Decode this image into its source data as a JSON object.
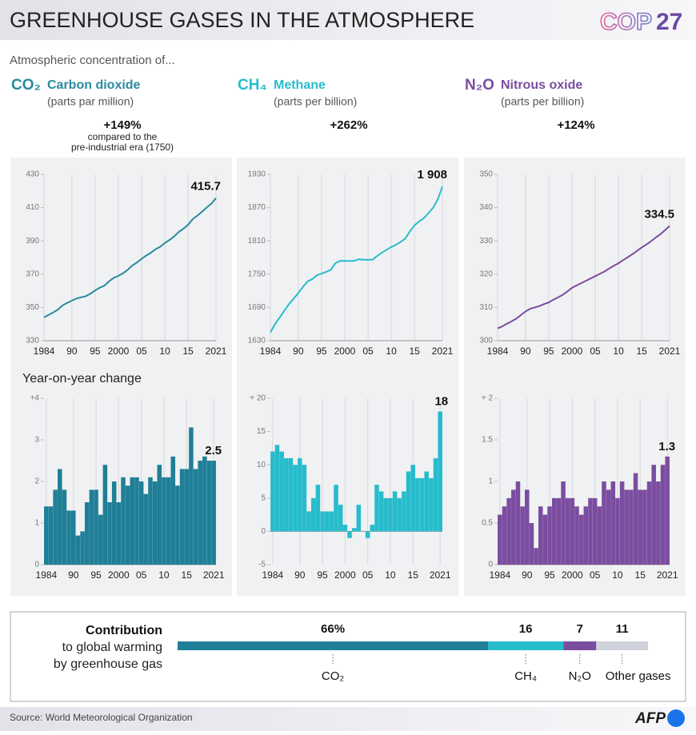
{
  "header": {
    "title": "GREENHOUSE GASES IN THE ATMOSPHERE",
    "logo_text": "COP",
    "logo_number": "27"
  },
  "intro": "Atmospheric concentration of...",
  "gases": [
    {
      "formula": "CO₂",
      "name": "Carbon dioxide",
      "unit": "(parts par million)",
      "change": "+149%",
      "note": [
        "compared to the",
        "pre-industrial era (1750)"
      ]
    },
    {
      "formula": "CH₄",
      "name": "Methane",
      "unit": "(parts per billion)",
      "change": "+262%"
    },
    {
      "formula": "N₂O",
      "name": "Nitrous oxide",
      "unit": "(parts per billion)",
      "change": "+124%"
    }
  ],
  "subheading": "Year-on-year change",
  "chart_data": [
    {
      "type": "line",
      "color": "#2a8aa0",
      "x": [
        1984,
        1985,
        1986,
        1987,
        1988,
        1989,
        1990,
        1991,
        1992,
        1993,
        1994,
        1995,
        1996,
        1997,
        1998,
        1999,
        2000,
        2001,
        2002,
        2003,
        2004,
        2005,
        2006,
        2007,
        2008,
        2009,
        2010,
        2011,
        2012,
        2013,
        2014,
        2015,
        2016,
        2017,
        2018,
        2019,
        2020,
        2021
      ],
      "values": [
        344.1,
        345.5,
        347.0,
        348.7,
        351.2,
        352.8,
        354.1,
        355.4,
        356.1,
        356.8,
        358.3,
        360.2,
        361.9,
        363.1,
        365.7,
        367.8,
        369.0,
        370.6,
        372.6,
        375.2,
        377.0,
        379.2,
        381.2,
        382.9,
        385.0,
        386.5,
        388.8,
        390.6,
        392.7,
        395.4,
        397.3,
        399.7,
        403.1,
        405.2,
        407.6,
        410.1,
        412.4,
        415.7
      ],
      "xlim": [
        1984,
        2021
      ],
      "xticks": [
        1984,
        {
          "value": 1990,
          "label": "90"
        },
        {
          "value": 1995,
          "label": "95"
        },
        2000,
        {
          "value": 2005,
          "label": "05"
        },
        {
          "value": 2010,
          "label": "10"
        },
        {
          "value": 2015,
          "label": "15"
        },
        2021
      ],
      "ylim": [
        330,
        430
      ],
      "yticks": [
        330,
        350,
        370,
        390,
        410,
        430
      ]
    },
    {
      "type": "line",
      "color": "#27bccc",
      "x": [
        1984,
        1985,
        1986,
        1987,
        1988,
        1989,
        1990,
        1991,
        1992,
        1993,
        1994,
        1995,
        1996,
        1997,
        1998,
        1999,
        2000,
        2001,
        2002,
        2003,
        2004,
        2005,
        2006,
        2007,
        2008,
        2009,
        2010,
        2011,
        2012,
        2013,
        2014,
        2015,
        2016,
        2017,
        2018,
        2019,
        2020,
        2021
      ],
      "values": [
        1645,
        1660,
        1672,
        1684,
        1696,
        1706,
        1716,
        1727,
        1737,
        1741,
        1748,
        1751,
        1754,
        1758,
        1770,
        1774,
        1774,
        1774,
        1774,
        1777,
        1776,
        1776,
        1776,
        1783,
        1789,
        1794,
        1799,
        1803,
        1808,
        1814,
        1827,
        1838,
        1845,
        1851,
        1860,
        1870,
        1885,
        1908
      ],
      "value_labels": [
        null,
        null,
        null,
        null,
        null,
        null,
        null,
        null,
        null,
        null,
        null,
        null,
        null,
        null,
        null,
        null,
        null,
        null,
        null,
        null,
        null,
        null,
        null,
        null,
        null,
        null,
        null,
        null,
        null,
        null,
        null,
        null,
        null,
        null,
        null,
        null,
        null,
        "1 908"
      ],
      "xlim": [
        1984,
        2021
      ],
      "xticks": [
        1984,
        {
          "value": 1990,
          "label": "90"
        },
        {
          "value": 1995,
          "label": "95"
        },
        2000,
        {
          "value": 2005,
          "label": "05"
        },
        {
          "value": 2010,
          "label": "10"
        },
        {
          "value": 2015,
          "label": "15"
        },
        2021
      ],
      "ylim": [
        1630,
        1930
      ],
      "yticks": [
        1630,
        1690,
        1750,
        1810,
        1870,
        1930
      ]
    },
    {
      "type": "line",
      "color": "#7b4da0",
      "x": [
        1984,
        1985,
        1986,
        1987,
        1988,
        1989,
        1990,
        1991,
        1992,
        1993,
        1994,
        1995,
        1996,
        1997,
        1998,
        1999,
        2000,
        2001,
        2002,
        2003,
        2004,
        2005,
        2006,
        2007,
        2008,
        2009,
        2010,
        2011,
        2012,
        2013,
        2014,
        2015,
        2016,
        2017,
        2018,
        2019,
        2020,
        2021
      ],
      "values": [
        303.7,
        304.3,
        305.1,
        305.8,
        306.6,
        307.7,
        308.8,
        309.6,
        310.0,
        310.4,
        311.0,
        311.5,
        312.3,
        313.0,
        313.8,
        314.8,
        315.9,
        316.6,
        317.3,
        318.0,
        318.7,
        319.4,
        320.1,
        320.8,
        321.7,
        322.5,
        323.3,
        324.2,
        325.1,
        326.0,
        327.0,
        328.0,
        328.9,
        329.9,
        331.0,
        332.0,
        333.2,
        334.5
      ],
      "xlim": [
        1984,
        2021
      ],
      "xticks": [
        1984,
        {
          "value": 1990,
          "label": "90"
        },
        {
          "value": 1995,
          "label": "95"
        },
        2000,
        {
          "value": 2005,
          "label": "05"
        },
        {
          "value": 2010,
          "label": "10"
        },
        {
          "value": 2015,
          "label": "15"
        },
        2021
      ],
      "ylim": [
        300,
        350
      ],
      "yticks": [
        300,
        310,
        320,
        330,
        340,
        350
      ]
    },
    {
      "type": "bar",
      "color": "#1f7f96",
      "x": [
        1984,
        1985,
        1986,
        1987,
        1988,
        1989,
        1990,
        1991,
        1992,
        1993,
        1994,
        1995,
        1996,
        1997,
        1998,
        1999,
        2000,
        2001,
        2002,
        2003,
        2004,
        2005,
        2006,
        2007,
        2008,
        2009,
        2010,
        2011,
        2012,
        2013,
        2014,
        2015,
        2016,
        2017,
        2018,
        2019,
        2020,
        2021
      ],
      "values": [
        1.4,
        1.4,
        1.8,
        2.3,
        1.8,
        1.3,
        1.3,
        0.7,
        0.8,
        1.5,
        1.8,
        1.8,
        1.2,
        2.4,
        1.5,
        2.0,
        1.5,
        2.1,
        1.9,
        2.1,
        2.1,
        2.0,
        1.7,
        2.1,
        2.0,
        2.4,
        2.1,
        2.1,
        2.6,
        1.9,
        2.3,
        2.3,
        3.3,
        2.3,
        2.5,
        2.6,
        2.5,
        2.5
      ],
      "xlim": [
        1983.5,
        2021.5
      ],
      "xticks": [
        1984,
        {
          "value": 1990,
          "label": "90"
        },
        {
          "value": 1995,
          "label": "95"
        },
        2000,
        {
          "value": 2005,
          "label": "05"
        },
        {
          "value": 2010,
          "label": "10"
        },
        {
          "value": 2015,
          "label": "15"
        },
        2021
      ],
      "ylim": [
        0,
        4
      ],
      "yticks": [
        0,
        1,
        2,
        3,
        {
          "value": 4,
          "label": "+4"
        }
      ]
    },
    {
      "type": "bar",
      "color": "#27bccc",
      "x": [
        1984,
        1985,
        1986,
        1987,
        1988,
        1989,
        1990,
        1991,
        1992,
        1993,
        1994,
        1995,
        1996,
        1997,
        1998,
        1999,
        2000,
        2001,
        2002,
        2003,
        2004,
        2005,
        2006,
        2007,
        2008,
        2009,
        2010,
        2011,
        2012,
        2013,
        2014,
        2015,
        2016,
        2017,
        2018,
        2019,
        2020,
        2021
      ],
      "values": [
        12,
        13,
        12,
        11,
        11,
        10,
        11,
        10,
        3,
        5,
        7,
        3,
        3,
        3,
        7,
        4,
        1,
        -1,
        0.5,
        4,
        0,
        -1,
        1,
        7,
        6,
        5,
        5,
        6,
        5,
        6,
        9,
        10,
        8,
        8,
        9,
        8,
        11,
        18
      ],
      "xlim": [
        1983.5,
        2021.5
      ],
      "xticks": [
        1984,
        {
          "value": 1990,
          "label": "90"
        },
        {
          "value": 1995,
          "label": "95"
        },
        2000,
        {
          "value": 2005,
          "label": "05"
        },
        {
          "value": 2010,
          "label": "10"
        },
        {
          "value": 2015,
          "label": "15"
        },
        2021
      ],
      "ylim": [
        -5,
        20
      ],
      "yticks": [
        -5,
        0,
        5,
        10,
        15,
        {
          "value": 20,
          "label": "+ 20"
        }
      ]
    },
    {
      "type": "bar",
      "color": "#7b4da0",
      "x": [
        1984,
        1985,
        1986,
        1987,
        1988,
        1989,
        1990,
        1991,
        1992,
        1993,
        1994,
        1995,
        1996,
        1997,
        1998,
        1999,
        2000,
        2001,
        2002,
        2003,
        2004,
        2005,
        2006,
        2007,
        2008,
        2009,
        2010,
        2011,
        2012,
        2013,
        2014,
        2015,
        2016,
        2017,
        2018,
        2019,
        2020,
        2021
      ],
      "values": [
        0.6,
        0.7,
        0.8,
        0.9,
        1.0,
        0.7,
        0.9,
        0.5,
        0.2,
        0.7,
        0.6,
        0.7,
        0.8,
        0.8,
        1.0,
        0.8,
        0.8,
        0.7,
        0.6,
        0.7,
        0.8,
        0.8,
        0.7,
        1.0,
        0.9,
        1.0,
        0.8,
        1.0,
        0.9,
        0.9,
        1.1,
        0.9,
        0.9,
        1.0,
        1.2,
        1.0,
        1.2,
        1.3
      ],
      "xlim": [
        1983.5,
        2021.5
      ],
      "xticks": [
        1984,
        {
          "value": 1990,
          "label": "90"
        },
        {
          "value": 1995,
          "label": "95"
        },
        2000,
        {
          "value": 2005,
          "label": "05"
        },
        {
          "value": 2010,
          "label": "10"
        },
        {
          "value": 2015,
          "label": "15"
        },
        2021
      ],
      "ylim": [
        0,
        2
      ],
      "yticks": [
        0,
        0.5,
        1,
        1.5,
        {
          "value": 2,
          "label": "+ 2"
        }
      ]
    },
    {
      "type": "stacked-bar",
      "title": "Contribution",
      "subtitle": [
        "to global warming",
        "by  greenhouse gas"
      ],
      "categories": [
        "CO₂",
        "CH₄",
        "N₂O",
        "Other gases"
      ],
      "values": [
        66,
        16,
        7,
        11
      ],
      "value_labels": [
        "66%",
        null,
        null,
        null
      ],
      "colors": [
        "#1f7f96",
        "#27bccc",
        "#7b4da0",
        "#d0d3dc"
      ],
      "xlim": [
        0,
        100
      ]
    }
  ],
  "source": "Source: World Meteorological Organization",
  "brand": "AFP"
}
